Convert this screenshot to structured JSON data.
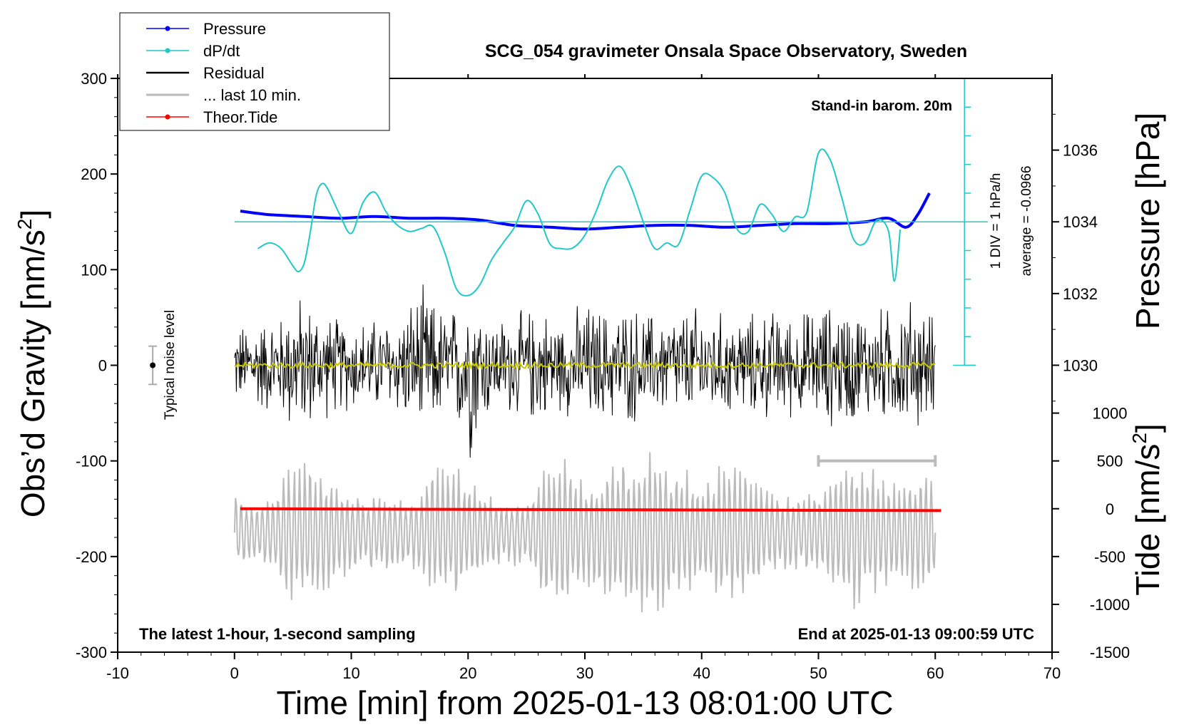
{
  "chart_data": {
    "type": "line",
    "title": "SCG_054 gravimeter Onsala Space Observatory, Sweden",
    "xlabel": "Time [min] from 2025-01-13 08:01:00 UTC",
    "ylabel_left": "Obs’d Gravity [nm/s",
    "ylabel_left_exp": "2",
    "ylabel_left_close": "]",
    "ylabel_right_pressure": "Pressure [hPa]",
    "ylabel_right_tide": "Tide [nm/s",
    "ylabel_right_tide_exp": "2",
    "ylabel_right_tide_close": "]",
    "xlim": [
      -10,
      70
    ],
    "ylim": [
      -300,
      300
    ],
    "x_ticks": [
      "-10",
      "0",
      "10",
      "20",
      "30",
      "40",
      "50",
      "60",
      "70"
    ],
    "y_ticks": [
      "300",
      "200",
      "100",
      "0",
      "-100",
      "-200",
      "-300"
    ],
    "pressure_ticks": [
      "1036",
      "1034",
      "1032",
      "1030"
    ],
    "pressure_tick_values": [
      1036,
      1034,
      1032,
      1030
    ],
    "pressure_axis": {
      "value_at_g300": 1038,
      "hpa_per_100nms2": 2.667
    },
    "tide_ticks": [
      "1000",
      "500",
      "0",
      "-500",
      "-1000",
      "-1500"
    ],
    "tide_tick_values": [
      1000,
      500,
      0,
      -500,
      -1000,
      -1500
    ],
    "tide_axis": {
      "value_at_g_minus300": -1500,
      "value_at_g_minus150": 0
    },
    "legend": [
      {
        "label": "Pressure",
        "color": "#0000ff",
        "marker": true,
        "stroke": 1.5
      },
      {
        "label": "dP/dt",
        "color": "#20c8c8",
        "marker": true,
        "stroke": 1.5
      },
      {
        "label": "Residual",
        "color": "#000000",
        "marker": false,
        "stroke": 2.5
      },
      {
        "label": "... last 10 min.",
        "color": "#bbbbbb",
        "marker": false,
        "stroke": 3
      },
      {
        "label": "Theor.Tide",
        "color": "#ff0000",
        "marker": true,
        "stroke": 1.5
      }
    ],
    "annotations": {
      "barom": "Stand-in barom. 20m",
      "sampling": "The latest 1-hour, 1-second sampling",
      "end": "End at 2025-01-13 09:00:59 UTC",
      "div": "1 DIV = 1 hPa/h",
      "average": "average = -0.0966",
      "noise": "Typical noise level"
    },
    "noise_bar": {
      "x": -7,
      "center": 0,
      "half_range": 20
    },
    "last10_bar": {
      "x_start": 50,
      "x_end": 60,
      "g": -100
    },
    "dpdt": {
      "baseline_g": 150,
      "scale_top_g": 300,
      "scale_bottom_g": 0,
      "x": [
        2,
        3,
        4,
        5,
        5.5,
        6,
        6.5,
        7,
        7.5,
        8,
        9,
        10,
        11,
        12,
        13,
        14,
        15,
        16,
        17,
        18,
        19,
        20,
        21,
        22,
        23,
        24,
        25,
        26,
        27,
        28,
        29,
        30,
        31,
        32,
        33,
        34,
        35,
        36,
        37,
        38,
        39,
        40,
        41,
        42,
        43,
        44,
        45,
        46,
        47,
        48,
        49,
        50,
        51,
        52,
        53,
        54,
        55,
        56,
        56.5,
        57
      ],
      "values": [
        122,
        128,
        122,
        104,
        98,
        108,
        140,
        178,
        190,
        184,
        158,
        138,
        170,
        181,
        160,
        146,
        140,
        143,
        145,
        118,
        80,
        73,
        84,
        110,
        128,
        145,
        172,
        158,
        127,
        122,
        123,
        136,
        162,
        194,
        208,
        185,
        150,
        122,
        128,
        126,
        162,
        198,
        196,
        180,
        143,
        140,
        168,
        158,
        140,
        155,
        160,
        222,
        215,
        175,
        132,
        128,
        152,
        140,
        88,
        142
      ]
    },
    "series": [
      {
        "name": "Pressure",
        "color": "#0000ff",
        "unit": "hPa",
        "x": [
          0.5,
          3,
          6,
          9,
          12,
          15,
          18,
          21,
          24,
          27,
          30,
          33,
          36,
          39,
          42,
          45,
          48,
          51,
          54,
          56,
          57.5,
          58.5,
          59.5
        ],
        "values": [
          1034.3,
          1034.2,
          1034.15,
          1034.1,
          1034.15,
          1034.1,
          1034.1,
          1034.05,
          1033.9,
          1033.85,
          1033.8,
          1033.85,
          1033.9,
          1033.9,
          1033.85,
          1033.9,
          1033.95,
          1033.95,
          1034.0,
          1034.1,
          1033.85,
          1034.2,
          1034.8
        ]
      },
      {
        "name": "Residual",
        "color": "#000000",
        "x_start": 0,
        "x_end": 60,
        "envelope_x": [
          0,
          2,
          4,
          5,
          6,
          8,
          10,
          12,
          14,
          16,
          18,
          19,
          20,
          21,
          22,
          24,
          26,
          28,
          30,
          32,
          34,
          36,
          38,
          40,
          42,
          44,
          46,
          48,
          50,
          52,
          54,
          56,
          58,
          60
        ],
        "envelope": [
          45,
          55,
          60,
          85,
          80,
          60,
          55,
          55,
          60,
          90,
          65,
          70,
          115,
          85,
          55,
          60,
          70,
          55,
          75,
          65,
          70,
          60,
          65,
          70,
          60,
          60,
          65,
          60,
          70,
          75,
          65,
          70,
          80,
          60
        ]
      },
      {
        "name": "Smoothed residual",
        "color": "#c8c800",
        "x_start": 0,
        "x_end": 60,
        "values": [
          0
        ]
      },
      {
        "name": "... last 10 min.",
        "color": "#bbbbbb",
        "x_start": 0,
        "x_end": 60,
        "center_g": -175,
        "envelope_x": [
          0,
          2,
          4,
          5,
          7,
          9,
          11,
          13,
          15,
          17,
          19,
          21,
          23,
          25,
          27,
          28,
          30,
          33,
          35,
          36,
          38,
          40,
          42,
          44,
          46,
          48,
          50,
          52,
          53,
          55,
          57,
          58,
          60
        ],
        "envelope": [
          45,
          30,
          60,
          80,
          75,
          50,
          40,
          45,
          35,
          70,
          70,
          45,
          35,
          40,
          80,
          90,
          55,
          80,
          85,
          90,
          70,
          60,
          75,
          65,
          45,
          40,
          45,
          75,
          90,
          70,
          55,
          70,
          55
        ]
      },
      {
        "name": "Theor.Tide",
        "color": "#ff0000",
        "unit": "nm/s2",
        "x": [
          0.5,
          60.5
        ],
        "values": [
          -150,
          -152
        ]
      }
    ]
  }
}
